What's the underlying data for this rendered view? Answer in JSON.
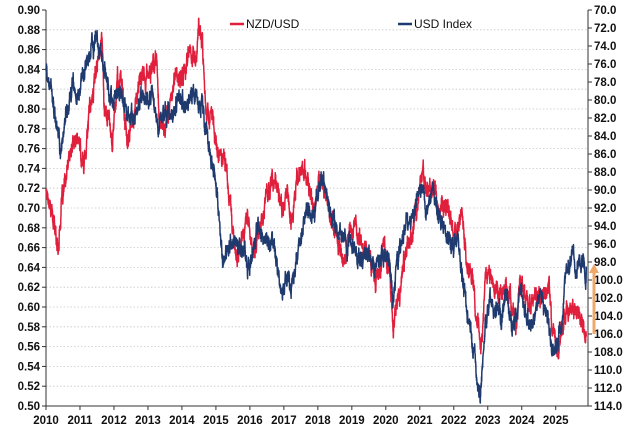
{
  "chart_data": {
    "type": "line",
    "x_range": [
      2010.0,
      2025.95
    ],
    "left_axis": {
      "min": 0.5,
      "max": 0.9,
      "step": 0.02,
      "decimals": 2
    },
    "right_axis": {
      "top": 70.0,
      "bottom": 114.0,
      "step": 2,
      "decimals": 1,
      "inverted": true
    },
    "x_ticks": [
      "2010",
      "2011",
      "2012",
      "2013",
      "2014",
      "2015",
      "2016",
      "2017",
      "2018",
      "2019",
      "2020",
      "2021",
      "2022",
      "2023",
      "2024",
      "2025"
    ],
    "grid": "horizontal dotted",
    "legend_position": "top-center",
    "colors": {
      "nzd": "#e01f3d",
      "usd": "#1f3a6e",
      "arrow": "#f0a868"
    },
    "series": [
      {
        "name": "NZD/USD",
        "axis": "left",
        "color": "#e01f3d",
        "points": [
          [
            2010.0,
            0.72
          ],
          [
            2010.1,
            0.71
          ],
          [
            2010.2,
            0.69
          ],
          [
            2010.35,
            0.66
          ],
          [
            2010.45,
            0.7
          ],
          [
            2010.6,
            0.73
          ],
          [
            2010.75,
            0.76
          ],
          [
            2010.9,
            0.77
          ],
          [
            2011.0,
            0.76
          ],
          [
            2011.1,
            0.74
          ],
          [
            2011.25,
            0.79
          ],
          [
            2011.4,
            0.82
          ],
          [
            2011.55,
            0.86
          ],
          [
            2011.65,
            0.87
          ],
          [
            2011.72,
            0.8
          ],
          [
            2011.85,
            0.79
          ],
          [
            2011.95,
            0.77
          ],
          [
            2012.1,
            0.83
          ],
          [
            2012.25,
            0.82
          ],
          [
            2012.4,
            0.76
          ],
          [
            2012.55,
            0.79
          ],
          [
            2012.7,
            0.82
          ],
          [
            2012.85,
            0.83
          ],
          [
            2012.95,
            0.83
          ],
          [
            2013.1,
            0.84
          ],
          [
            2013.25,
            0.85
          ],
          [
            2013.35,
            0.79
          ],
          [
            2013.5,
            0.78
          ],
          [
            2013.65,
            0.81
          ],
          [
            2013.8,
            0.83
          ],
          [
            2013.95,
            0.83
          ],
          [
            2014.1,
            0.84
          ],
          [
            2014.25,
            0.86
          ],
          [
            2014.4,
            0.85
          ],
          [
            2014.5,
            0.88
          ],
          [
            2014.6,
            0.87
          ],
          [
            2014.72,
            0.8
          ],
          [
            2014.85,
            0.79
          ],
          [
            2014.95,
            0.78
          ],
          [
            2015.1,
            0.75
          ],
          [
            2015.25,
            0.76
          ],
          [
            2015.4,
            0.71
          ],
          [
            2015.55,
            0.66
          ],
          [
            2015.65,
            0.65
          ],
          [
            2015.8,
            0.68
          ],
          [
            2015.95,
            0.69
          ],
          [
            2016.1,
            0.65
          ],
          [
            2016.2,
            0.67
          ],
          [
            2016.35,
            0.69
          ],
          [
            2016.5,
            0.71
          ],
          [
            2016.65,
            0.73
          ],
          [
            2016.8,
            0.72
          ],
          [
            2016.95,
            0.7
          ],
          [
            2017.1,
            0.72
          ],
          [
            2017.25,
            0.69
          ],
          [
            2017.4,
            0.73
          ],
          [
            2017.55,
            0.74
          ],
          [
            2017.7,
            0.73
          ],
          [
            2017.85,
            0.69
          ],
          [
            2017.95,
            0.71
          ],
          [
            2018.05,
            0.73
          ],
          [
            2018.2,
            0.72
          ],
          [
            2018.35,
            0.7
          ],
          [
            2018.5,
            0.68
          ],
          [
            2018.65,
            0.66
          ],
          [
            2018.8,
            0.65
          ],
          [
            2018.95,
            0.68
          ],
          [
            2019.1,
            0.68
          ],
          [
            2019.25,
            0.67
          ],
          [
            2019.4,
            0.66
          ],
          [
            2019.55,
            0.65
          ],
          [
            2019.7,
            0.63
          ],
          [
            2019.85,
            0.64
          ],
          [
            2019.95,
            0.67
          ],
          [
            2020.1,
            0.64
          ],
          [
            2020.22,
            0.57
          ],
          [
            2020.3,
            0.6
          ],
          [
            2020.45,
            0.63
          ],
          [
            2020.6,
            0.66
          ],
          [
            2020.75,
            0.67
          ],
          [
            2020.95,
            0.71
          ],
          [
            2021.1,
            0.73
          ],
          [
            2021.25,
            0.71
          ],
          [
            2021.4,
            0.72
          ],
          [
            2021.55,
            0.7
          ],
          [
            2021.7,
            0.7
          ],
          [
            2021.85,
            0.69
          ],
          [
            2021.95,
            0.68
          ],
          [
            2022.1,
            0.67
          ],
          [
            2022.25,
            0.7
          ],
          [
            2022.4,
            0.64
          ],
          [
            2022.55,
            0.63
          ],
          [
            2022.7,
            0.58
          ],
          [
            2022.8,
            0.56
          ],
          [
            2022.95,
            0.63
          ],
          [
            2023.1,
            0.63
          ],
          [
            2023.25,
            0.62
          ],
          [
            2023.4,
            0.61
          ],
          [
            2023.55,
            0.62
          ],
          [
            2023.7,
            0.6
          ],
          [
            2023.85,
            0.59
          ],
          [
            2023.95,
            0.63
          ],
          [
            2024.1,
            0.61
          ],
          [
            2024.25,
            0.6
          ],
          [
            2024.4,
            0.61
          ],
          [
            2024.55,
            0.6
          ],
          [
            2024.7,
            0.62
          ],
          [
            2024.8,
            0.61
          ],
          [
            2024.95,
            0.57
          ],
          [
            2025.05,
            0.56
          ],
          [
            2025.2,
            0.58
          ],
          [
            2025.35,
            0.6
          ],
          [
            2025.5,
            0.6
          ],
          [
            2025.65,
            0.59
          ],
          [
            2025.8,
            0.58
          ],
          [
            2025.9,
            0.57
          ]
        ]
      },
      {
        "name": "USD Index",
        "axis": "right",
        "color": "#1f3a6e",
        "points": [
          [
            2010.0,
            77.0
          ],
          [
            2010.15,
            79.5
          ],
          [
            2010.3,
            83.0
          ],
          [
            2010.45,
            86.0
          ],
          [
            2010.6,
            82.0
          ],
          [
            2010.75,
            78.5
          ],
          [
            2010.9,
            79.5
          ],
          [
            2011.05,
            78.0
          ],
          [
            2011.2,
            76.5
          ],
          [
            2011.35,
            74.0
          ],
          [
            2011.55,
            73.5
          ],
          [
            2011.7,
            76.0
          ],
          [
            2011.85,
            79.0
          ],
          [
            2011.95,
            80.0
          ],
          [
            2012.1,
            79.5
          ],
          [
            2012.3,
            80.0
          ],
          [
            2012.45,
            82.5
          ],
          [
            2012.6,
            82.0
          ],
          [
            2012.75,
            80.0
          ],
          [
            2012.9,
            79.5
          ],
          [
            2013.1,
            79.5
          ],
          [
            2013.3,
            83.0
          ],
          [
            2013.45,
            82.0
          ],
          [
            2013.6,
            81.5
          ],
          [
            2013.8,
            80.5
          ],
          [
            2013.95,
            80.0
          ],
          [
            2014.1,
            80.5
          ],
          [
            2014.3,
            79.5
          ],
          [
            2014.5,
            80.0
          ],
          [
            2014.65,
            82.0
          ],
          [
            2014.8,
            86.0
          ],
          [
            2014.95,
            88.0
          ],
          [
            2015.1,
            93.0
          ],
          [
            2015.2,
            98.0
          ],
          [
            2015.35,
            96.0
          ],
          [
            2015.5,
            95.5
          ],
          [
            2015.65,
            96.0
          ],
          [
            2015.8,
            96.0
          ],
          [
            2015.95,
            98.5
          ],
          [
            2016.1,
            97.0
          ],
          [
            2016.25,
            94.0
          ],
          [
            2016.4,
            95.0
          ],
          [
            2016.55,
            96.0
          ],
          [
            2016.7,
            95.5
          ],
          [
            2016.85,
            100.0
          ],
          [
            2016.95,
            102.0
          ],
          [
            2017.1,
            100.0
          ],
          [
            2017.25,
            100.5
          ],
          [
            2017.4,
            97.0
          ],
          [
            2017.55,
            94.0
          ],
          [
            2017.7,
            92.5
          ],
          [
            2017.85,
            93.0
          ],
          [
            2017.95,
            92.0
          ],
          [
            2018.1,
            89.0
          ],
          [
            2018.25,
            90.0
          ],
          [
            2018.4,
            93.5
          ],
          [
            2018.55,
            94.5
          ],
          [
            2018.7,
            95.0
          ],
          [
            2018.85,
            96.5
          ],
          [
            2018.95,
            96.0
          ],
          [
            2019.1,
            96.5
          ],
          [
            2019.25,
            97.5
          ],
          [
            2019.4,
            97.0
          ],
          [
            2019.55,
            98.0
          ],
          [
            2019.7,
            98.5
          ],
          [
            2019.85,
            97.5
          ],
          [
            2019.95,
            96.5
          ],
          [
            2020.1,
            98.0
          ],
          [
            2020.22,
            102.5
          ],
          [
            2020.3,
            99.0
          ],
          [
            2020.45,
            97.0
          ],
          [
            2020.6,
            93.0
          ],
          [
            2020.75,
            93.5
          ],
          [
            2020.95,
            90.0
          ],
          [
            2021.1,
            91.0
          ],
          [
            2021.25,
            92.5
          ],
          [
            2021.4,
            90.0
          ],
          [
            2021.55,
            92.5
          ],
          [
            2021.7,
            93.5
          ],
          [
            2021.85,
            96.0
          ],
          [
            2021.95,
            96.0
          ],
          [
            2022.1,
            96.0
          ],
          [
            2022.25,
            99.0
          ],
          [
            2022.4,
            104.0
          ],
          [
            2022.55,
            107.0
          ],
          [
            2022.7,
            112.0
          ],
          [
            2022.78,
            113.5
          ],
          [
            2022.95,
            104.0
          ],
          [
            2023.1,
            102.0
          ],
          [
            2023.25,
            102.5
          ],
          [
            2023.4,
            104.0
          ],
          [
            2023.55,
            101.0
          ],
          [
            2023.7,
            105.5
          ],
          [
            2023.85,
            103.5
          ],
          [
            2023.95,
            101.5
          ],
          [
            2024.1,
            103.5
          ],
          [
            2024.25,
            105.0
          ],
          [
            2024.4,
            104.5
          ],
          [
            2024.55,
            101.5
          ],
          [
            2024.7,
            103.5
          ],
          [
            2024.85,
            106.5
          ],
          [
            2024.95,
            108.0
          ],
          [
            2025.05,
            107.0
          ],
          [
            2025.2,
            104.0
          ],
          [
            2025.3,
            99.5
          ],
          [
            2025.45,
            97.5
          ],
          [
            2025.6,
            98.5
          ],
          [
            2025.75,
            97.5
          ],
          [
            2025.9,
            98.5
          ]
        ]
      }
    ]
  }
}
